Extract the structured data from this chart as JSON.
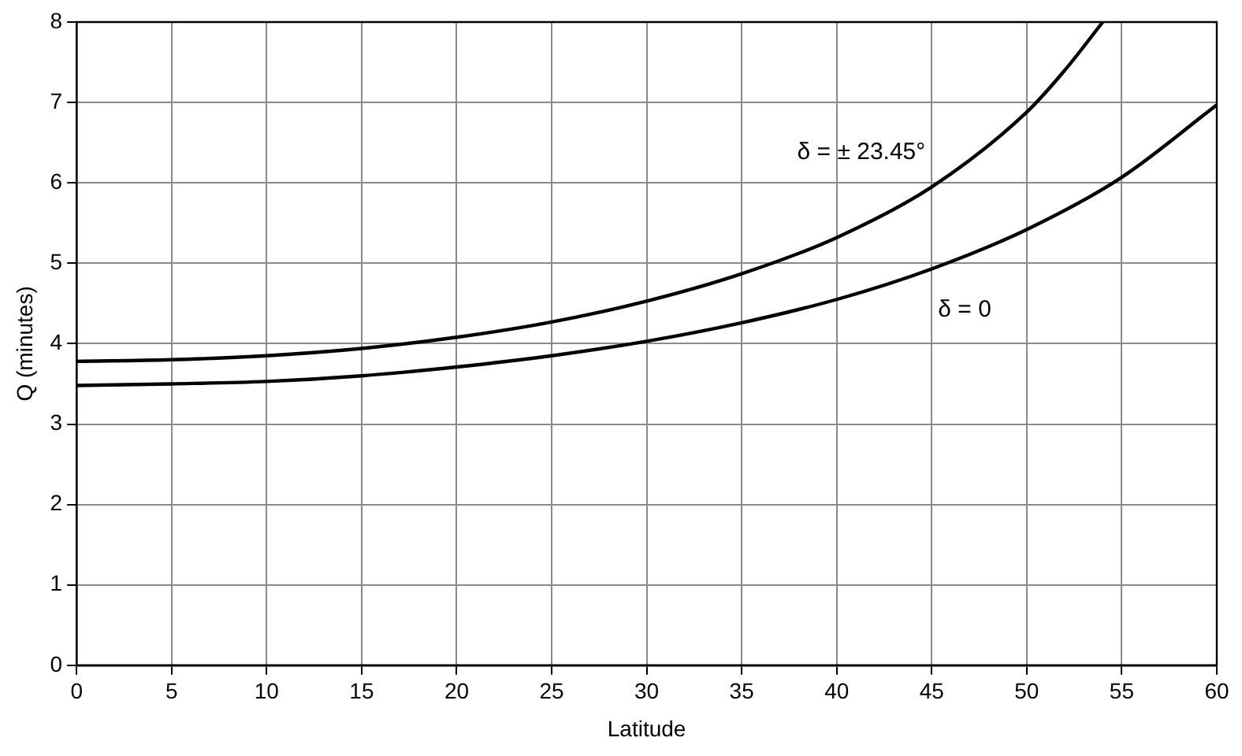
{
  "chart_data": {
    "type": "line",
    "xlabel": "Latitude",
    "ylabel": "Q (minutes)",
    "xlim": [
      0,
      60
    ],
    "xticks": [
      0,
      5,
      10,
      15,
      20,
      25,
      30,
      35,
      40,
      45,
      50,
      55,
      60
    ],
    "ylim": [
      0,
      8
    ],
    "yticks": [
      0,
      1,
      2,
      3,
      4,
      5,
      6,
      7,
      8
    ],
    "grid": true,
    "legend": false,
    "marker": "none",
    "line_style": "solid",
    "series": [
      {
        "name": "δ = ± 23.45°",
        "color": "#000000",
        "x": [
          0,
          5,
          10,
          15,
          20,
          25,
          30,
          35,
          40,
          45,
          50,
          52,
          54
        ],
        "values": [
          3.78,
          3.8,
          3.85,
          3.94,
          4.08,
          4.27,
          4.53,
          4.87,
          5.32,
          5.95,
          6.88,
          7.4,
          8.0
        ]
      },
      {
        "name": "δ = 0",
        "color": "#000000",
        "x": [
          0,
          5,
          10,
          15,
          20,
          25,
          30,
          35,
          40,
          45,
          50,
          55,
          60
        ],
        "values": [
          3.48,
          3.5,
          3.53,
          3.6,
          3.71,
          3.85,
          4.03,
          4.26,
          4.55,
          4.93,
          5.42,
          6.07,
          6.97
        ]
      }
    ]
  }
}
